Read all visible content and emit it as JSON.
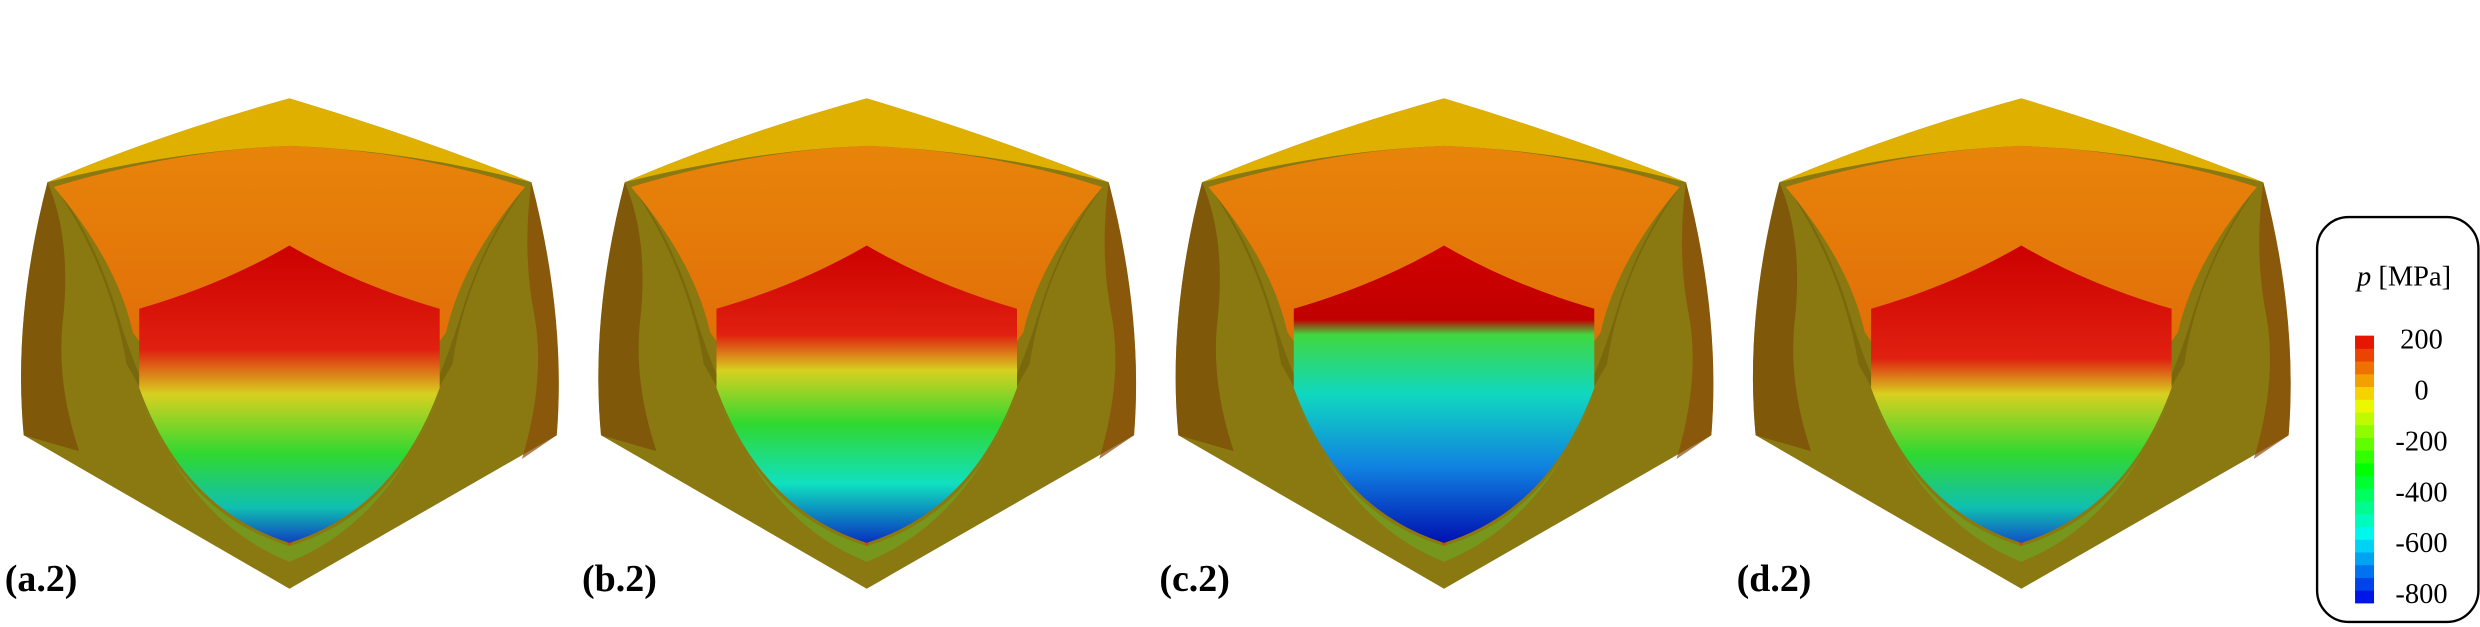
{
  "panels": [
    {
      "label": "(a.2)"
    },
    {
      "label": "(b.2)"
    },
    {
      "label": "(c.2)"
    },
    {
      "label": "(d.2)"
    }
  ],
  "colorbar": {
    "symbol": "p",
    "unit": "[MPa]",
    "range": [
      -825,
      225
    ],
    "step": 50,
    "ticks": [
      200,
      0,
      -200,
      -400,
      -600,
      -800
    ]
  }
}
